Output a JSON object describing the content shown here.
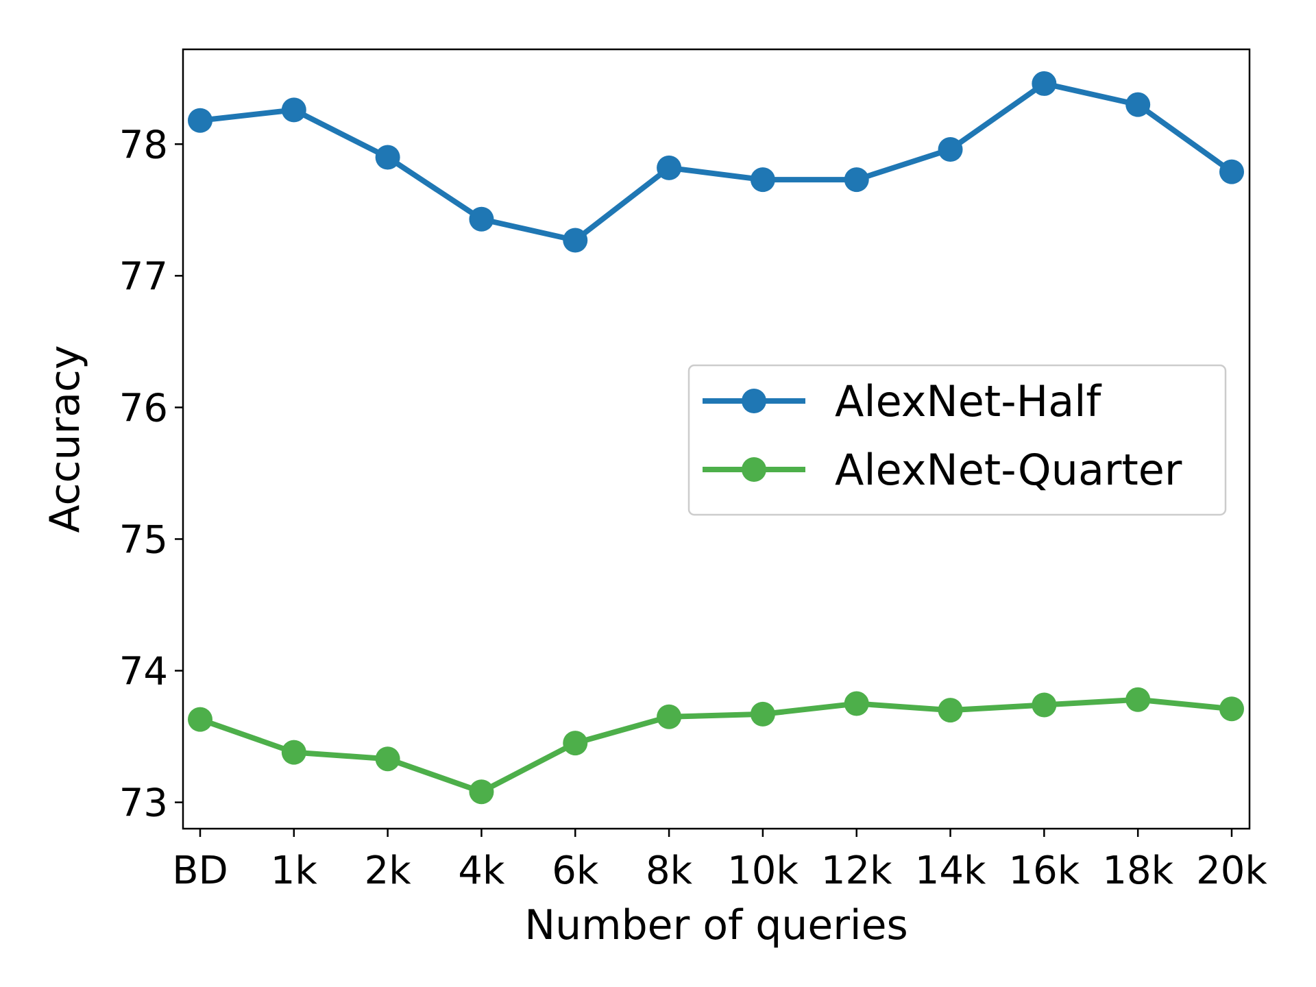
{
  "chart_data": {
    "type": "line",
    "title": "",
    "xlabel": "Number of queries",
    "ylabel": "Accuracy",
    "categories": [
      "BD",
      "1k",
      "2k",
      "4k",
      "6k",
      "8k",
      "10k",
      "12k",
      "14k",
      "16k",
      "18k",
      "20k"
    ],
    "yticks": [
      73,
      74,
      75,
      76,
      77,
      78
    ],
    "ylim": [
      72.8,
      78.72
    ],
    "grid": false,
    "legend_position": "center-right",
    "series": [
      {
        "name": "AlexNet-Half",
        "color": "#1f77b4",
        "values": [
          78.18,
          78.26,
          77.9,
          77.43,
          77.27,
          77.82,
          77.73,
          77.73,
          77.96,
          78.46,
          78.3,
          77.79
        ]
      },
      {
        "name": "AlexNet-Quarter",
        "color": "#4daf4a",
        "values": [
          73.63,
          73.38,
          73.33,
          73.08,
          73.45,
          73.65,
          73.67,
          73.75,
          73.7,
          73.74,
          73.78,
          73.71
        ]
      }
    ]
  }
}
